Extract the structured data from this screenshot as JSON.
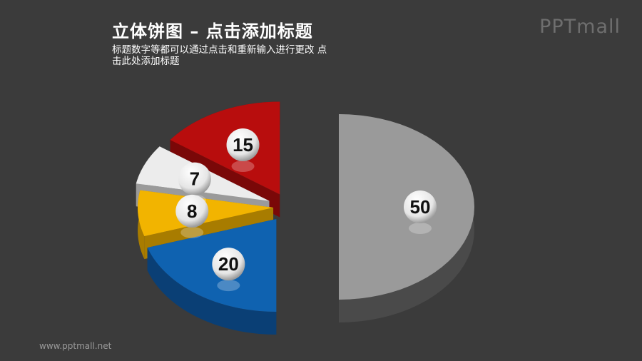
{
  "header": {
    "title": "立体饼图 – 点击添加标题",
    "subtitle": "标题数字等都可以通过点击和重新输入进行更改 点击此处添加标题"
  },
  "logo": "PPTmall",
  "footer": "www.pptmall.net",
  "chart_data": {
    "type": "pie",
    "style": "3d exploded",
    "values": [
      50,
      20,
      8,
      7,
      15
    ],
    "labels": [
      "50",
      "20",
      "8",
      "7",
      "15"
    ],
    "colors": [
      "#9a9a9a",
      "#0f62b0",
      "#f2b400",
      "#ececec",
      "#b80d0d"
    ],
    "side_colors": [
      "#4a4a4a",
      "#0a3f75",
      "#a87c00",
      "#9a9a9a",
      "#7a0808"
    ]
  }
}
